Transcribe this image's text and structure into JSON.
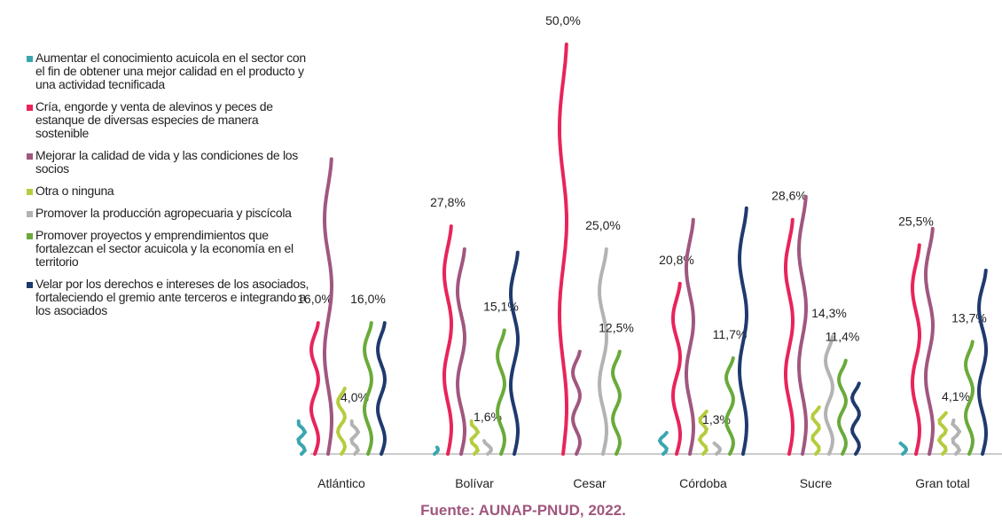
{
  "chart_data": {
    "type": "wavy-bar",
    "categories": [
      "Atlántico",
      "Bolívar",
      "Cesar",
      "Córdoba",
      "Sucre",
      "Gran total"
    ],
    "ylim": [
      0,
      50
    ],
    "legend": "left",
    "series": [
      {
        "name": "Aumentar el conocimiento acuicola en el sector con el fin de obtener una mejor calidad en el producto y una actividad tecnificada",
        "color": "#3aa6b0",
        "values": [
          4.0,
          0.8,
          0,
          2.6,
          0,
          1.3
        ]
      },
      {
        "name": "Cría, engorde y venta de alevinos y peces de estanque de diversas especies de manera sostenible",
        "color": "#e8245a",
        "values": [
          16.0,
          27.8,
          50.0,
          20.8,
          28.6,
          25.5
        ],
        "value_labels": [
          "16,0%",
          "27,8%",
          "50,0%",
          "20,8%",
          "28,6%",
          "25,5%"
        ]
      },
      {
        "name": "Mejorar la calidad de vida y las condiciones de los socios",
        "color": "#a0577e",
        "values": [
          36.0,
          25.0,
          12.5,
          28.6,
          31.4,
          27.5
        ]
      },
      {
        "name": "Otra o ninguna",
        "color": "#b5cc3e",
        "values": [
          8.0,
          4.0,
          0,
          5.2,
          5.7,
          5.0
        ]
      },
      {
        "name": "Promover la producción agropecuaria y piscícola",
        "color": "#b3b3b3",
        "values": [
          4.0,
          1.6,
          25.0,
          1.3,
          14.3,
          4.1
        ],
        "value_labels": [
          "4,0%",
          "1,6%",
          "25,0%",
          "1,3%",
          "14,3%",
          "4,1%"
        ]
      },
      {
        "name": "Promover proyectos y emprendimientos que fortalezcan el sector acuicola y la economía en el territorio",
        "color": "#6aaa3a",
        "values": [
          16.0,
          15.1,
          12.5,
          11.7,
          11.4,
          13.7
        ],
        "value_labels": [
          "16,0%",
          "15,1%",
          "12,5%",
          "11,7%",
          "11,4%",
          "13,7%"
        ]
      },
      {
        "name": "Velar por los derechos e intereses de los asociados, fortaleciendo el gremio ante terceros e integrando a los asociados",
        "color": "#1f3a6e",
        "values": [
          16.0,
          24.6,
          0,
          30.0,
          8.6,
          22.4
        ]
      }
    ],
    "source": "Fuente: AUNAP-PNUD, 2022."
  }
}
